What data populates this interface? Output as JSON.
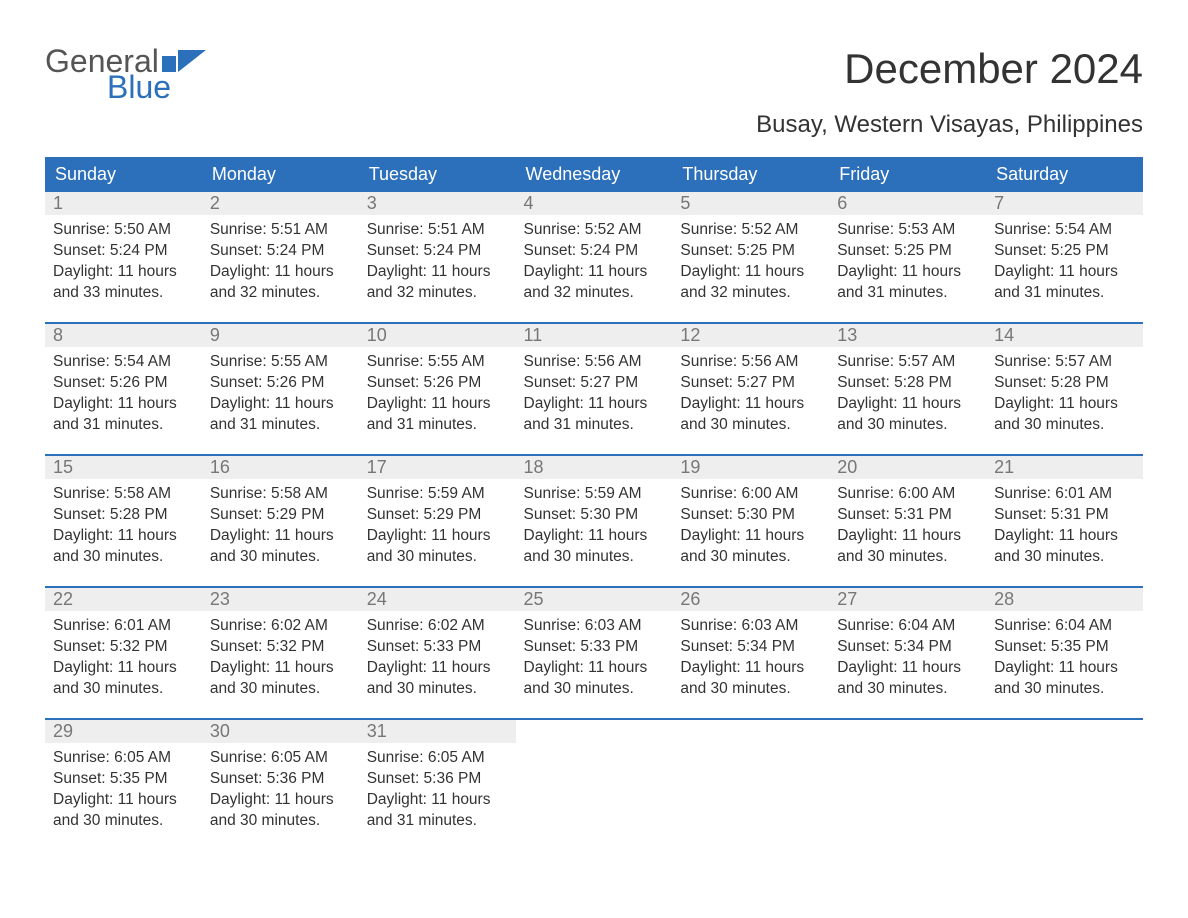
{
  "logo": {
    "part1": "General",
    "part2": "Blue"
  },
  "title": "December 2024",
  "subtitle": "Busay, Western Visayas, Philippines",
  "colors": {
    "header_bg": "#2c6fbb",
    "header_text": "#ffffff",
    "daynum_bg": "#eeeeee",
    "daynum_text": "#777777",
    "body_text": "#333333",
    "logo_gray": "#555555",
    "logo_blue": "#2c6fbb"
  },
  "columns": [
    "Sunday",
    "Monday",
    "Tuesday",
    "Wednesday",
    "Thursday",
    "Friday",
    "Saturday"
  ],
  "weeks": [
    [
      {
        "n": "1",
        "sr": "Sunrise: 5:50 AM",
        "ss": "Sunset: 5:24 PM",
        "d1": "Daylight: 11 hours",
        "d2": "and 33 minutes."
      },
      {
        "n": "2",
        "sr": "Sunrise: 5:51 AM",
        "ss": "Sunset: 5:24 PM",
        "d1": "Daylight: 11 hours",
        "d2": "and 32 minutes."
      },
      {
        "n": "3",
        "sr": "Sunrise: 5:51 AM",
        "ss": "Sunset: 5:24 PM",
        "d1": "Daylight: 11 hours",
        "d2": "and 32 minutes."
      },
      {
        "n": "4",
        "sr": "Sunrise: 5:52 AM",
        "ss": "Sunset: 5:24 PM",
        "d1": "Daylight: 11 hours",
        "d2": "and 32 minutes."
      },
      {
        "n": "5",
        "sr": "Sunrise: 5:52 AM",
        "ss": "Sunset: 5:25 PM",
        "d1": "Daylight: 11 hours",
        "d2": "and 32 minutes."
      },
      {
        "n": "6",
        "sr": "Sunrise: 5:53 AM",
        "ss": "Sunset: 5:25 PM",
        "d1": "Daylight: 11 hours",
        "d2": "and 31 minutes."
      },
      {
        "n": "7",
        "sr": "Sunrise: 5:54 AM",
        "ss": "Sunset: 5:25 PM",
        "d1": "Daylight: 11 hours",
        "d2": "and 31 minutes."
      }
    ],
    [
      {
        "n": "8",
        "sr": "Sunrise: 5:54 AM",
        "ss": "Sunset: 5:26 PM",
        "d1": "Daylight: 11 hours",
        "d2": "and 31 minutes."
      },
      {
        "n": "9",
        "sr": "Sunrise: 5:55 AM",
        "ss": "Sunset: 5:26 PM",
        "d1": "Daylight: 11 hours",
        "d2": "and 31 minutes."
      },
      {
        "n": "10",
        "sr": "Sunrise: 5:55 AM",
        "ss": "Sunset: 5:26 PM",
        "d1": "Daylight: 11 hours",
        "d2": "and 31 minutes."
      },
      {
        "n": "11",
        "sr": "Sunrise: 5:56 AM",
        "ss": "Sunset: 5:27 PM",
        "d1": "Daylight: 11 hours",
        "d2": "and 31 minutes."
      },
      {
        "n": "12",
        "sr": "Sunrise: 5:56 AM",
        "ss": "Sunset: 5:27 PM",
        "d1": "Daylight: 11 hours",
        "d2": "and 30 minutes."
      },
      {
        "n": "13",
        "sr": "Sunrise: 5:57 AM",
        "ss": "Sunset: 5:28 PM",
        "d1": "Daylight: 11 hours",
        "d2": "and 30 minutes."
      },
      {
        "n": "14",
        "sr": "Sunrise: 5:57 AM",
        "ss": "Sunset: 5:28 PM",
        "d1": "Daylight: 11 hours",
        "d2": "and 30 minutes."
      }
    ],
    [
      {
        "n": "15",
        "sr": "Sunrise: 5:58 AM",
        "ss": "Sunset: 5:28 PM",
        "d1": "Daylight: 11 hours",
        "d2": "and 30 minutes."
      },
      {
        "n": "16",
        "sr": "Sunrise: 5:58 AM",
        "ss": "Sunset: 5:29 PM",
        "d1": "Daylight: 11 hours",
        "d2": "and 30 minutes."
      },
      {
        "n": "17",
        "sr": "Sunrise: 5:59 AM",
        "ss": "Sunset: 5:29 PM",
        "d1": "Daylight: 11 hours",
        "d2": "and 30 minutes."
      },
      {
        "n": "18",
        "sr": "Sunrise: 5:59 AM",
        "ss": "Sunset: 5:30 PM",
        "d1": "Daylight: 11 hours",
        "d2": "and 30 minutes."
      },
      {
        "n": "19",
        "sr": "Sunrise: 6:00 AM",
        "ss": "Sunset: 5:30 PM",
        "d1": "Daylight: 11 hours",
        "d2": "and 30 minutes."
      },
      {
        "n": "20",
        "sr": "Sunrise: 6:00 AM",
        "ss": "Sunset: 5:31 PM",
        "d1": "Daylight: 11 hours",
        "d2": "and 30 minutes."
      },
      {
        "n": "21",
        "sr": "Sunrise: 6:01 AM",
        "ss": "Sunset: 5:31 PM",
        "d1": "Daylight: 11 hours",
        "d2": "and 30 minutes."
      }
    ],
    [
      {
        "n": "22",
        "sr": "Sunrise: 6:01 AM",
        "ss": "Sunset: 5:32 PM",
        "d1": "Daylight: 11 hours",
        "d2": "and 30 minutes."
      },
      {
        "n": "23",
        "sr": "Sunrise: 6:02 AM",
        "ss": "Sunset: 5:32 PM",
        "d1": "Daylight: 11 hours",
        "d2": "and 30 minutes."
      },
      {
        "n": "24",
        "sr": "Sunrise: 6:02 AM",
        "ss": "Sunset: 5:33 PM",
        "d1": "Daylight: 11 hours",
        "d2": "and 30 minutes."
      },
      {
        "n": "25",
        "sr": "Sunrise: 6:03 AM",
        "ss": "Sunset: 5:33 PM",
        "d1": "Daylight: 11 hours",
        "d2": "and 30 minutes."
      },
      {
        "n": "26",
        "sr": "Sunrise: 6:03 AM",
        "ss": "Sunset: 5:34 PM",
        "d1": "Daylight: 11 hours",
        "d2": "and 30 minutes."
      },
      {
        "n": "27",
        "sr": "Sunrise: 6:04 AM",
        "ss": "Sunset: 5:34 PM",
        "d1": "Daylight: 11 hours",
        "d2": "and 30 minutes."
      },
      {
        "n": "28",
        "sr": "Sunrise: 6:04 AM",
        "ss": "Sunset: 5:35 PM",
        "d1": "Daylight: 11 hours",
        "d2": "and 30 minutes."
      }
    ],
    [
      {
        "n": "29",
        "sr": "Sunrise: 6:05 AM",
        "ss": "Sunset: 5:35 PM",
        "d1": "Daylight: 11 hours",
        "d2": "and 30 minutes."
      },
      {
        "n": "30",
        "sr": "Sunrise: 6:05 AM",
        "ss": "Sunset: 5:36 PM",
        "d1": "Daylight: 11 hours",
        "d2": "and 30 minutes."
      },
      {
        "n": "31",
        "sr": "Sunrise: 6:05 AM",
        "ss": "Sunset: 5:36 PM",
        "d1": "Daylight: 11 hours",
        "d2": "and 31 minutes."
      },
      null,
      null,
      null,
      null
    ]
  ]
}
